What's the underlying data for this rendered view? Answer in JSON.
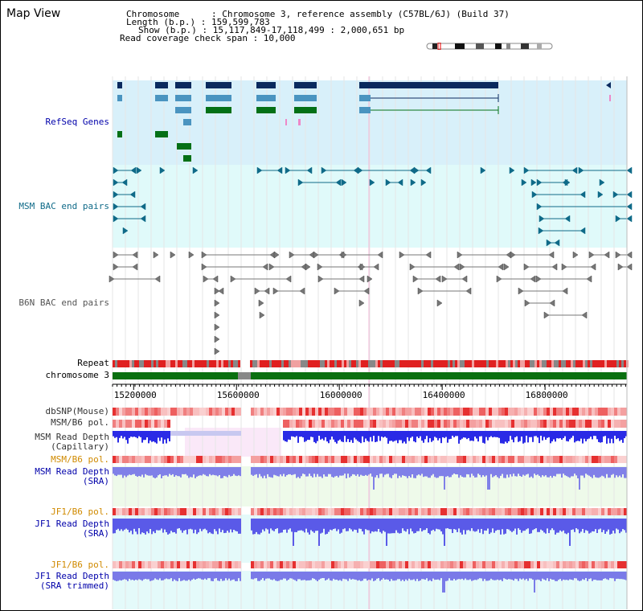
{
  "title": "Map View",
  "info": {
    "chromosome": "Chromosome      : Chromosome 3, reference assembly (C57BL/6J) (Build 37)",
    "length": "Length (b.p.) : 159,599,783",
    "show": "Show (b.p.) : 15,117,849-17,118,499 : 2,000,651 bp",
    "coverage": "Read coverage check span : 10,000"
  },
  "tracks": {
    "refseq": "RefSeq Genes",
    "msm_bac": "MSM BAC end pairs",
    "b6n_bac": "B6N BAC end pairs",
    "repeat": "Repeat",
    "chromosome": "chromosome 3",
    "dbsnp": "dbSNP(Mouse)",
    "msm_pol1": "MSM/B6 pol.",
    "msm_depth_cap": "MSM Read Depth\n(Capillary)",
    "msm_pol2": "MSM/B6 pol.",
    "msm_depth_sra": "MSM Read Depth\n(SRA)",
    "jf1_pol1": "JF1/B6 pol.",
    "jf1_depth_sra": "JF1 Read Depth\n(SRA)",
    "jf1_pol2": "JF1/B6 pol.",
    "jf1_depth_trim": "JF1 Read Depth\n(SRA trimmed)"
  },
  "axis": {
    "ticks": [
      {
        "label": "15200000",
        "value": 15200000
      },
      {
        "label": "15600000",
        "value": 15600000
      },
      {
        "label": "16000000",
        "value": 16000000
      },
      {
        "label": "16400000",
        "value": 16400000
      },
      {
        "label": "16800000",
        "value": 16800000
      }
    ],
    "start": 15117849,
    "end": 17118499
  },
  "colors": {
    "refseq_bg": "#d8f0fa",
    "bac_bg": "#e0fafa",
    "gene_dark": "#0b2a5e",
    "gene_mid": "#4a94c0",
    "gene_green": "#047016",
    "msm_bac": "#0f6a88",
    "b6n_bac": "#777777",
    "chrom_green": "#0a7010",
    "depth_blue": "#2a2ae6",
    "depth_light": "#7070e6",
    "label_blue": "#0000aa",
    "label_orange": "#d08a00"
  }
}
